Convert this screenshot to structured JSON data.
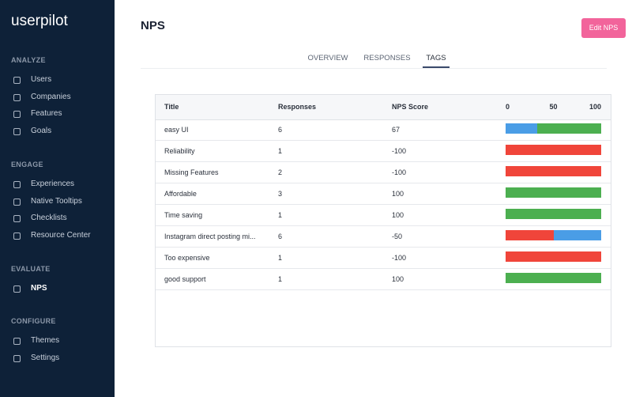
{
  "sidebar": {
    "logo": "userpilot",
    "sections": [
      {
        "title": "ANALYZE",
        "items": [
          "Users",
          "Companies",
          "Features",
          "Goals"
        ]
      },
      {
        "title": "ENGAGE",
        "items": [
          "Experiences",
          "Native Tooltips",
          "Checklists",
          "Resource Center"
        ]
      },
      {
        "title": "EVALUATE",
        "items": [
          "NPS"
        ]
      },
      {
        "title": "CONFIGURE",
        "items": [
          "Themes",
          "Settings"
        ]
      }
    ],
    "active": "NPS"
  },
  "header": {
    "title": "NPS",
    "button": "Edit NPS"
  },
  "tabs": {
    "items": [
      "OVERVIEW",
      "RESPONSES",
      "TAGS"
    ],
    "active": 2
  },
  "table": {
    "columns": [
      "Title",
      "Responses",
      "NPS Score"
    ],
    "scale": {
      "lim": [
        0,
        100
      ],
      "ticks": [
        0,
        50,
        100
      ]
    },
    "rows": [
      {
        "cells": [
          "easy UI",
          6,
          67
        ],
        "bar": [
          {
            "value": 33,
            "color": "#4a9de6"
          },
          {
            "value": 67,
            "color": "#4caf50"
          }
        ]
      },
      {
        "cells": [
          "Reliability",
          1,
          -100
        ],
        "bar": [
          {
            "value": 100,
            "color": "#f0453a"
          }
        ]
      },
      {
        "cells": [
          "Missing Features",
          2,
          -100
        ],
        "bar": [
          {
            "value": 100,
            "color": "#f0453a"
          }
        ]
      },
      {
        "cells": [
          "Affordable",
          3,
          100
        ],
        "bar": [
          {
            "value": 100,
            "color": "#4caf50"
          }
        ]
      },
      {
        "cells": [
          "Time saving",
          1,
          100
        ],
        "bar": [
          {
            "value": 100,
            "color": "#4caf50"
          }
        ]
      },
      {
        "cells": [
          "Instagram direct posting mi...",
          6,
          -50
        ],
        "bar": [
          {
            "value": 50,
            "color": "#f0453a"
          },
          {
            "value": 50,
            "color": "#4a9de6"
          }
        ]
      },
      {
        "cells": [
          "Too expensive",
          1,
          -100
        ],
        "bar": [
          {
            "value": 100,
            "color": "#f0453a"
          }
        ]
      },
      {
        "cells": [
          "good support",
          1,
          100
        ],
        "bar": [
          {
            "value": 100,
            "color": "#4caf50"
          }
        ]
      }
    ]
  }
}
